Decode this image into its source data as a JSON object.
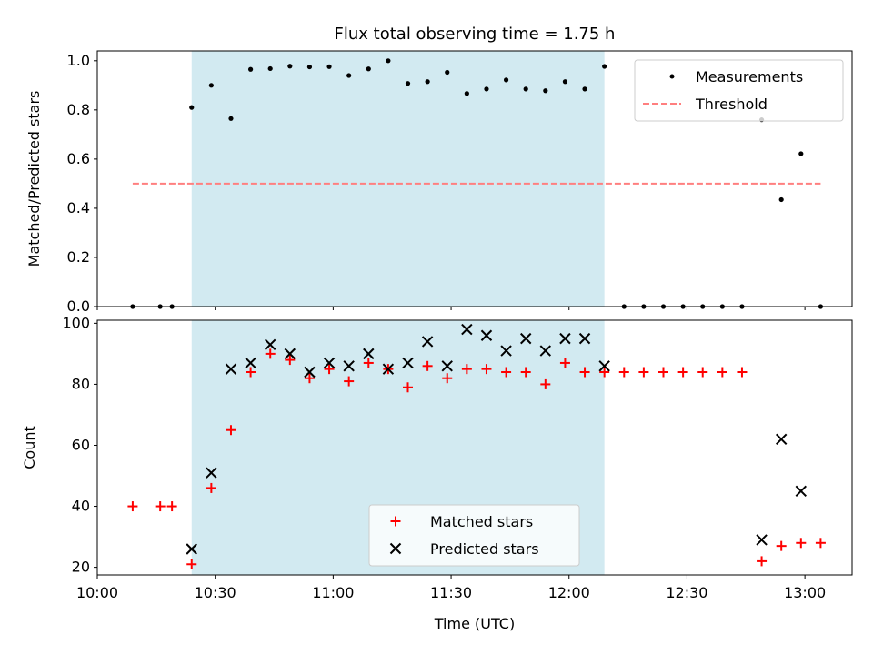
{
  "chart_data": [
    {
      "type": "scatter",
      "title": "Flux total observing time = 1.75 h",
      "ylabel": "Matched/Predicted stars",
      "xlim": [
        "10:00",
        "13:12"
      ],
      "ylim": [
        0,
        1.04
      ],
      "yticks": [
        "0.0",
        "0.2",
        "0.4",
        "0.6",
        "0.8",
        "1.0"
      ],
      "shaded_span": [
        "10:24",
        "12:09"
      ],
      "shade_color": "#add8e6",
      "legend_position": "upper right",
      "series": [
        {
          "name": "Measurements",
          "marker": "dot",
          "color": "#000000",
          "x": [
            "10:09",
            "10:16",
            "10:19",
            "10:24",
            "10:29",
            "10:34",
            "10:39",
            "10:44",
            "10:49",
            "10:54",
            "10:59",
            "11:04",
            "11:09",
            "11:14",
            "11:19",
            "11:24",
            "11:29",
            "11:34",
            "11:39",
            "11:44",
            "11:49",
            "11:54",
            "11:59",
            "12:04",
            "12:09",
            "12:14",
            "12:19",
            "12:24",
            "12:29",
            "12:34",
            "12:39",
            "12:44",
            "12:49",
            "12:54",
            "12:59",
            "13:04"
          ],
          "y": [
            0.0,
            0.0,
            0.0,
            0.81,
            0.9,
            0.765,
            0.965,
            0.968,
            0.978,
            0.975,
            0.976,
            0.94,
            0.967,
            1.0,
            0.908,
            0.915,
            0.953,
            0.867,
            0.885,
            0.922,
            0.885,
            0.878,
            0.915,
            0.885,
            0.977,
            0.0,
            0.0,
            0.0,
            0.0,
            0.0,
            0.0,
            0.0,
            0.76,
            0.435,
            0.622,
            0.0
          ]
        },
        {
          "name": "Threshold",
          "marker": "dashed-line",
          "color": "#ff7f7f",
          "x": [
            "10:09",
            "13:04"
          ],
          "y": [
            0.5,
            0.5
          ]
        }
      ]
    },
    {
      "type": "scatter",
      "xlabel": "Time (UTC)",
      "ylabel": "Count",
      "xlim": [
        "10:00",
        "13:12"
      ],
      "ylim": [
        17.5,
        101
      ],
      "yticks": [
        "20",
        "40",
        "60",
        "80",
        "100"
      ],
      "xticks": [
        "10:00",
        "10:30",
        "11:00",
        "11:30",
        "12:00",
        "12:30",
        "13:00"
      ],
      "shaded_span": [
        "10:24",
        "12:09"
      ],
      "shade_color": "#add8e6",
      "legend_position": "lower center",
      "series": [
        {
          "name": "Matched stars",
          "marker": "plus",
          "color": "#ff0000",
          "x": [
            "10:09",
            "10:16",
            "10:19",
            "10:24",
            "10:29",
            "10:34",
            "10:39",
            "10:44",
            "10:49",
            "10:54",
            "10:59",
            "11:04",
            "11:09",
            "11:14",
            "11:19",
            "11:24",
            "11:29",
            "11:34",
            "11:39",
            "11:44",
            "11:49",
            "11:54",
            "11:59",
            "12:04",
            "12:09",
            "12:14",
            "12:19",
            "12:24",
            "12:29",
            "12:34",
            "12:39",
            "12:44",
            "12:49",
            "12:54",
            "12:59",
            "13:04"
          ],
          "y": [
            40,
            40,
            40,
            21,
            46,
            65,
            84,
            90,
            88,
            82,
            85,
            81,
            87,
            85,
            79,
            86,
            82,
            85,
            85,
            84,
            84,
            80,
            87,
            84,
            84,
            84,
            84,
            84,
            84,
            84,
            84,
            84,
            22,
            27,
            28,
            28
          ]
        },
        {
          "name": "Predicted stars",
          "marker": "x",
          "color": "#000000",
          "x": [
            "10:24",
            "10:29",
            "10:34",
            "10:39",
            "10:44",
            "10:49",
            "10:54",
            "10:59",
            "11:04",
            "11:09",
            "11:14",
            "11:19",
            "11:24",
            "11:29",
            "11:34",
            "11:39",
            "11:44",
            "11:49",
            "11:54",
            "11:59",
            "12:04",
            "12:09",
            "12:49",
            "12:54",
            "12:59"
          ],
          "y": [
            26,
            51,
            85,
            87,
            93,
            90,
            84,
            87,
            86,
            90,
            85,
            87,
            94,
            86,
            98,
            96,
            91,
            95,
            91,
            95,
            95,
            86,
            29,
            62,
            45
          ]
        }
      ]
    }
  ]
}
